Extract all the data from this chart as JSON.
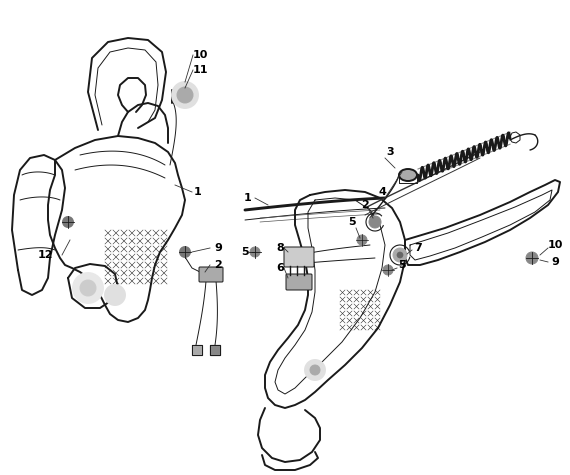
{
  "bg_color": "#ffffff",
  "line_color": "#1a1a1a",
  "fig_width": 5.7,
  "fig_height": 4.75,
  "dpi": 100,
  "lw_main": 1.4,
  "lw_thin": 0.7,
  "lw_detail": 0.5,
  "gray_fill": "#cccccc",
  "dark_fill": "#888888",
  "mid_fill": "#aaaaaa"
}
